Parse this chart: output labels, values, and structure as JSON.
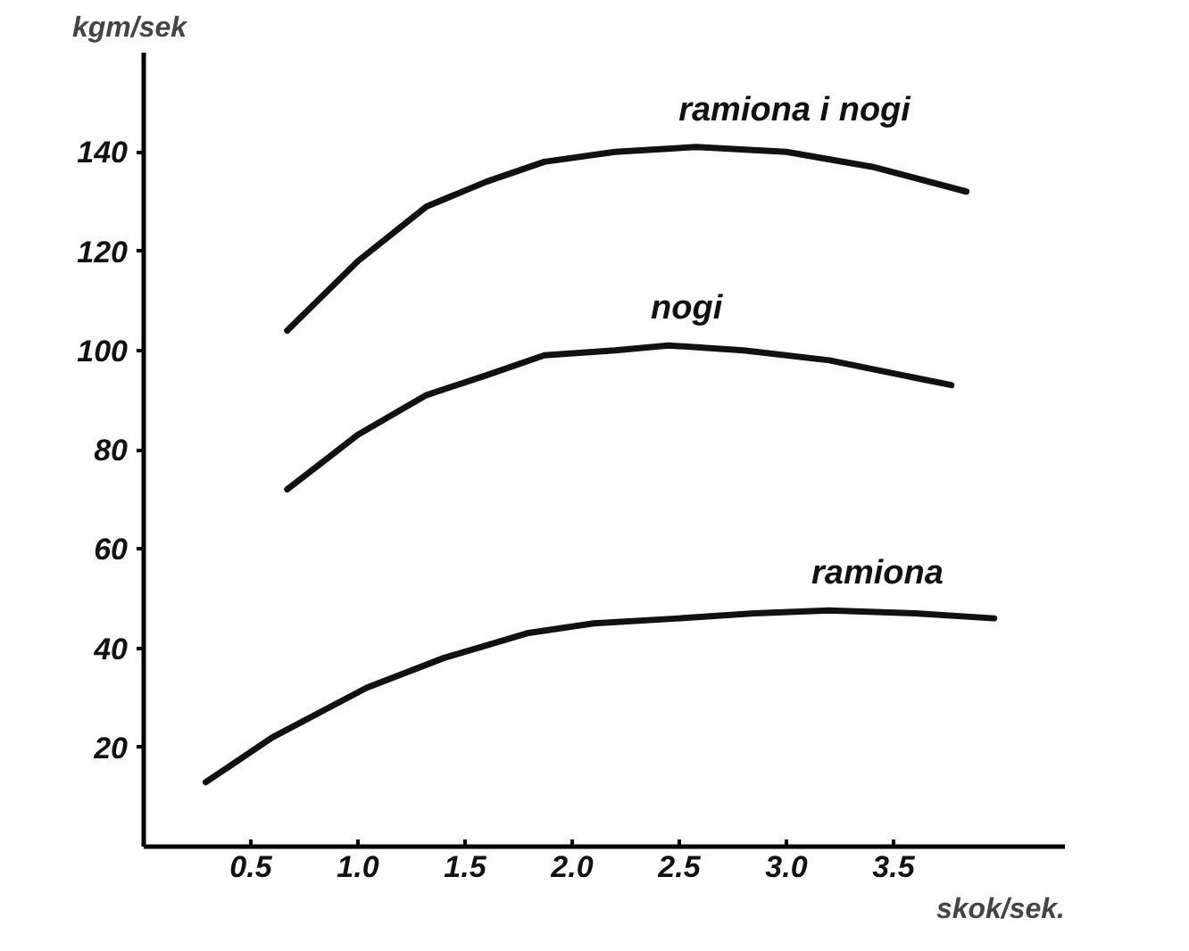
{
  "chart_data": {
    "type": "line",
    "xlabel": "skok/sek.",
    "ylabel": "kgm/sek",
    "xlim": [
      0,
      4.3
    ],
    "ylim": [
      0,
      160
    ],
    "xticks": [
      {
        "value": 0.5,
        "label": "0.5"
      },
      {
        "value": 1,
        "label": "1.0"
      },
      {
        "value": 1.5,
        "label": "1.5"
      },
      {
        "value": 2,
        "label": "2.0"
      },
      {
        "value": 2.5,
        "label": "2.5"
      },
      {
        "value": 3,
        "label": "3.0"
      },
      {
        "value": 3.5,
        "label": "3.5"
      }
    ],
    "yticks": [
      20,
      40,
      60,
      80,
      100,
      120,
      140
    ],
    "grid": false,
    "marker": "none",
    "line_style": "solid",
    "series": [
      {
        "name": "ramiona i nogi",
        "color": "#111111",
        "x": [
          0.67,
          1.0,
          1.32,
          1.6,
          1.87,
          2.2,
          2.58,
          3.0,
          3.4,
          3.84
        ],
        "values": [
          104,
          118,
          129,
          134,
          138,
          140,
          141,
          140,
          137,
          132
        ]
      },
      {
        "name": "nogi",
        "color": "#111111",
        "x": [
          0.67,
          1.0,
          1.32,
          1.6,
          1.87,
          2.2,
          2.45,
          2.8,
          3.2,
          3.77
        ],
        "values": [
          72,
          83,
          91,
          95,
          99,
          100,
          101,
          100,
          98,
          93
        ]
      },
      {
        "name": "ramiona",
        "color": "#111111",
        "x": [
          0.29,
          0.6,
          1.04,
          1.4,
          1.79,
          2.1,
          2.5,
          2.85,
          3.2,
          3.6,
          3.97
        ],
        "values": [
          13,
          22,
          32,
          38,
          43,
          45,
          46,
          47,
          47.6,
          47,
          46
        ]
      }
    ]
  }
}
